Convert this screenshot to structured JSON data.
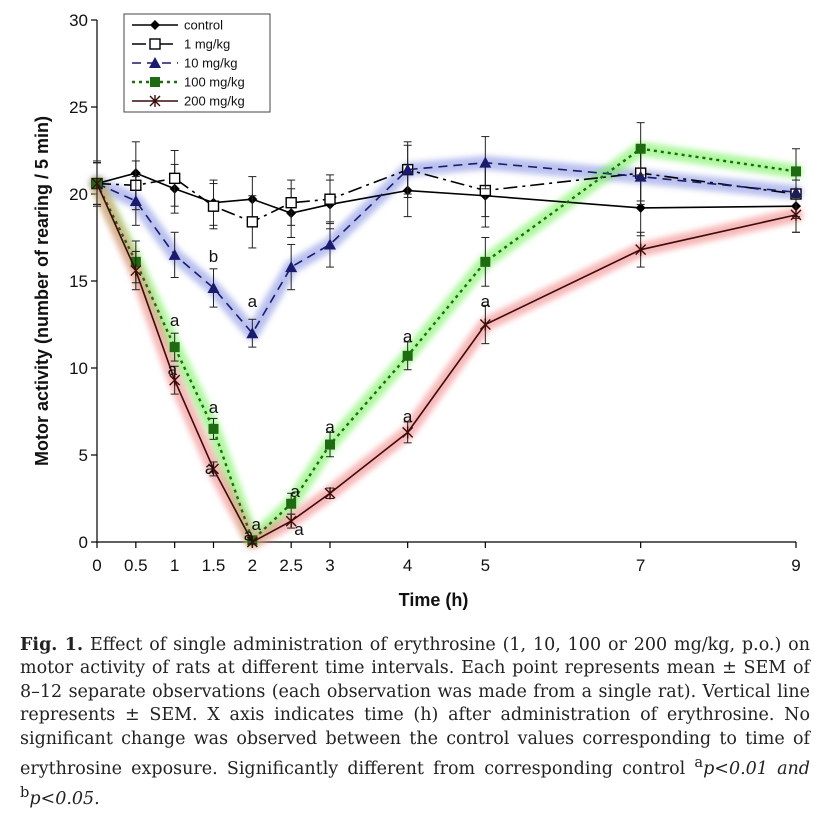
{
  "chart_data": {
    "type": "line",
    "xlabel": "Time (h)",
    "ylabel": "Motor activity (number of rearing / 5 min)",
    "ylim": [
      0,
      30
    ],
    "x": [
      0,
      0.5,
      1,
      1.5,
      2,
      2.5,
      3,
      4,
      5,
      7,
      9
    ],
    "x_tick_labels": [
      "0",
      "0.5",
      "1",
      "1.5",
      "2",
      "2.5",
      "3",
      "4",
      "5",
      "7",
      "9"
    ],
    "y_tick_labels": [
      "0",
      "5",
      "10",
      "15",
      "20",
      "25",
      "30"
    ],
    "legend_position": "top-left",
    "series": [
      {
        "name": "control",
        "line_style": "solid",
        "marker": "diamond",
        "color": "#000000",
        "values": [
          20.6,
          21.2,
          20.3,
          19.5,
          19.7,
          18.9,
          19.4,
          20.2,
          19.9,
          19.2,
          19.3
        ],
        "errors": [
          1.3,
          1.8,
          1.4,
          1.3,
          1.3,
          1.4,
          1.4,
          1.5,
          1.8,
          1.6,
          1.5
        ]
      },
      {
        "name": "1 mg/kg",
        "line_style": "dashdot",
        "marker": "open-square",
        "color": "#000000",
        "values": [
          20.6,
          20.5,
          20.9,
          19.3,
          18.4,
          19.5,
          19.7,
          21.4,
          20.2,
          21.2,
          20.0
        ],
        "errors": [
          1.2,
          1.4,
          1.6,
          1.3,
          1.5,
          1.3,
          1.4,
          1.6,
          1.5,
          1.6,
          1.4
        ]
      },
      {
        "name": "10 mg/kg",
        "line_style": "dashed",
        "marker": "triangle",
        "color": "#1a1a6e",
        "glow": "#7f8ce0",
        "values": [
          20.6,
          19.6,
          16.5,
          14.6,
          12.0,
          15.8,
          17.1,
          21.4,
          21.8,
          21.0,
          20.1
        ],
        "errors": [
          1.2,
          1.4,
          1.3,
          1.1,
          0.8,
          1.3,
          1.3,
          1.4,
          1.5,
          1.6,
          1.4
        ]
      },
      {
        "name": "100 mg/kg",
        "line_style": "dotted",
        "marker": "square",
        "color": "#1f6b12",
        "glow": "#6cf04e",
        "values": [
          20.6,
          16.1,
          11.2,
          6.5,
          0.1,
          2.2,
          5.6,
          10.7,
          16.1,
          22.6,
          21.3
        ],
        "errors": [
          1.2,
          1.2,
          0.8,
          0.6,
          0.1,
          0.6,
          0.7,
          0.8,
          1.4,
          1.5,
          1.3
        ]
      },
      {
        "name": "200 mg/kg",
        "line_style": "solid",
        "marker": "star",
        "color": "#3a0c0c",
        "glow": "#f07b7b",
        "values": [
          20.6,
          15.6,
          9.3,
          4.2,
          0.0,
          1.2,
          2.8,
          6.3,
          12.5,
          16.8,
          18.8
        ],
        "errors": [
          1.2,
          1.1,
          0.8,
          0.4,
          0.1,
          0.4,
          0.3,
          0.6,
          1.1,
          1.0,
          1.0
        ]
      }
    ],
    "annotations": [
      {
        "text": "b",
        "x": 1.5,
        "y": 16.1
      },
      {
        "text": "a",
        "x": 2,
        "y": 13.5
      },
      {
        "text": "a",
        "x": 1,
        "y": 12.4
      },
      {
        "text": "a",
        "x": 0.97,
        "y": 9.6
      },
      {
        "text": "a",
        "x": 1.5,
        "y": 7.4
      },
      {
        "text": "a",
        "x": 1.45,
        "y": 3.9
      },
      {
        "text": "a",
        "x": 2.05,
        "y": 0.7
      },
      {
        "text": "a",
        "x": 1.95,
        "y": 0.1
      },
      {
        "text": "a",
        "x": 2.55,
        "y": 2.6
      },
      {
        "text": "a",
        "x": 2.6,
        "y": 0.4
      },
      {
        "text": "a",
        "x": 3.0,
        "y": 6.3
      },
      {
        "text": "a",
        "x": 4.0,
        "y": 11.5
      },
      {
        "text": "a",
        "x": 4.0,
        "y": 6.9
      },
      {
        "text": "a",
        "x": 5.0,
        "y": 13.5
      }
    ]
  },
  "caption": {
    "label": "Fig. 1.",
    "text": " Effect of single administration of erythrosine (1, 10, 100 or 200 mg/kg, p.o.) on motor activity of rats at different time intervals. Each point represents mean ± SEM of 8–12 separate observations (each observation was made from a single rat). Vertical line represents ± SEM. X axis indicates time (h) after administration of erythrosine. No significant change was observed between the control values corresponding to time of erythrosine exposure. Significantly different from corresponding control ",
    "sup_a": "a",
    "p_a": "p<0.01 and ",
    "sup_b": "b",
    "p_b": "p<0.05."
  }
}
